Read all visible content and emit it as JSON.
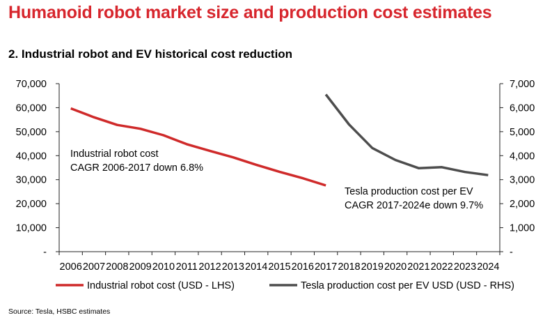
{
  "header": {
    "title": "Humanoid robot market size and production cost estimates",
    "subtitle": "2. Industrial robot and EV historical cost reduction"
  },
  "footer": {
    "source": "Source: Tesla, HSBC estimates"
  },
  "colors": {
    "title": "#d7262d",
    "industrial_robot": "#cf2a2a",
    "tesla": "#4d4d4d"
  },
  "chart_data": {
    "type": "line",
    "title": "2. Industrial robot and EV historical cost reduction",
    "x": [
      "2006",
      "2007",
      "2008",
      "2009",
      "2010",
      "2011",
      "2012",
      "2013",
      "2014",
      "2015",
      "2016",
      "2017",
      "2018",
      "2019",
      "2020",
      "2021",
      "2022",
      "2023",
      "2024"
    ],
    "y_left": {
      "ticks": [
        "70,000",
        "60,000",
        "50,000",
        "40,000",
        "30,000",
        "20,000",
        "10,000",
        "-"
      ],
      "range": [
        0,
        70000
      ]
    },
    "y_right": {
      "ticks": [
        "7,000",
        "6,000",
        "5,000",
        "4,000",
        "3,000",
        "2,000",
        "1,000",
        "-"
      ],
      "range": [
        0,
        7000
      ]
    },
    "grid": false,
    "legend_position": "bottom",
    "series": [
      {
        "name": "Industrial robot cost (USD - LHS)",
        "axis": "left",
        "x": [
          "2006",
          "2007",
          "2008",
          "2009",
          "2010",
          "2011",
          "2012",
          "2013",
          "2014",
          "2015",
          "2016",
          "2017"
        ],
        "values": [
          59700,
          56000,
          52800,
          51200,
          48500,
          44800,
          42000,
          39300,
          36200,
          33300,
          30600,
          27600
        ]
      },
      {
        "name": "Tesla production cost per EV USD (USD - RHS)",
        "axis": "right",
        "x": [
          "2017",
          "2018",
          "2019",
          "2020",
          "2021",
          "2022",
          "2023",
          "2024"
        ],
        "values": [
          6550,
          5300,
          4320,
          3820,
          3480,
          3520,
          3320,
          3190
        ]
      }
    ],
    "annotations": [
      {
        "id": "robot",
        "lines": [
          "Industrial robot cost",
          "CAGR 2006-2017 down 6.8%"
        ]
      },
      {
        "id": "tesla",
        "lines": [
          "Tesla production cost per EV",
          "CAGR 2017-2024e down 9.7%"
        ]
      }
    ]
  }
}
